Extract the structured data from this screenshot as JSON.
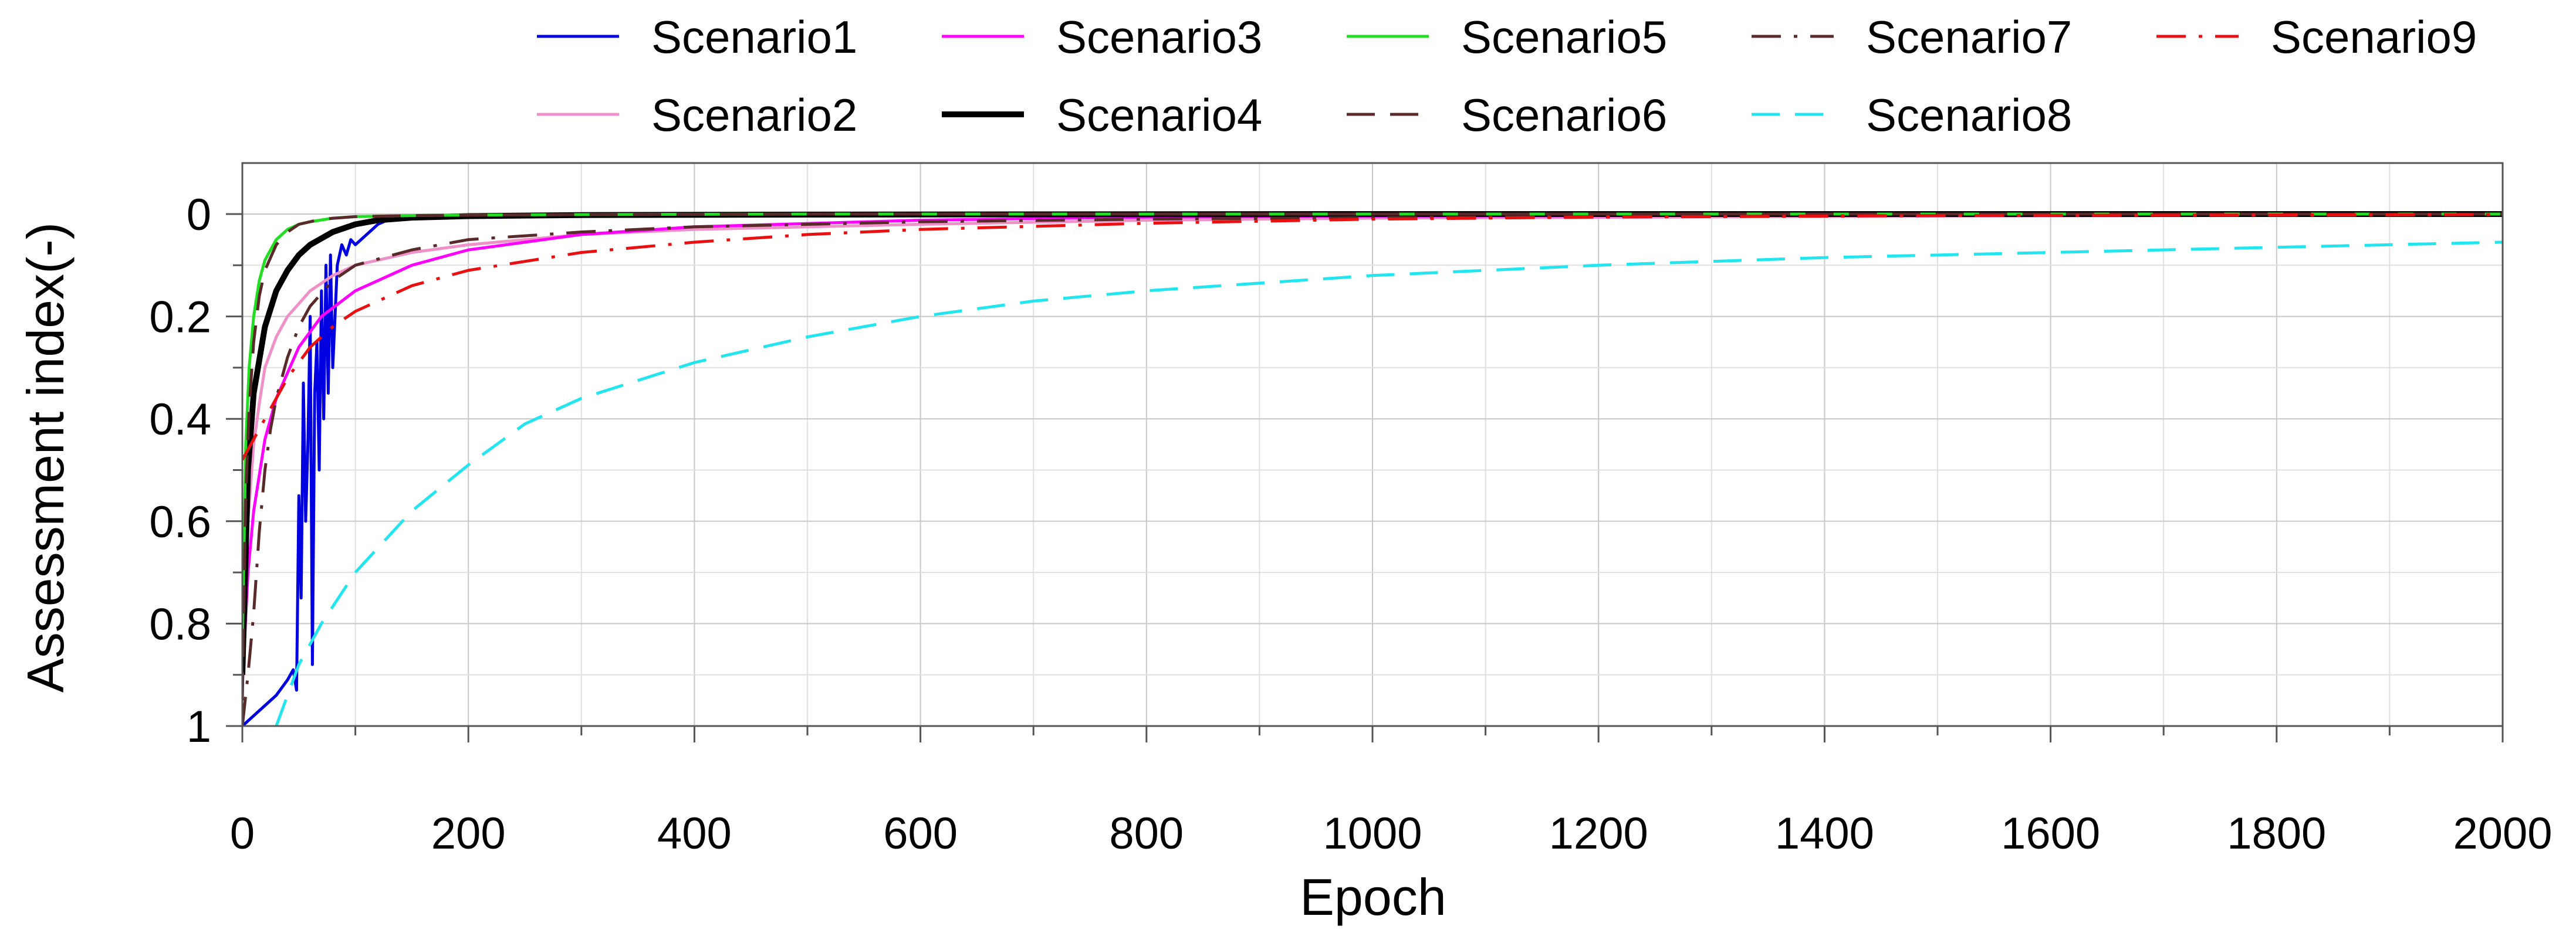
{
  "chart_data": {
    "type": "line",
    "title": "",
    "xlabel": "Epoch",
    "ylabel": "Assessment index(-)",
    "xlim": [
      0,
      2000
    ],
    "ylim": [
      0,
      1
    ],
    "y_inverted": true,
    "grid": true,
    "legend_position": "top, outside plot",
    "x_ticks": [
      0,
      200,
      400,
      600,
      800,
      1000,
      1200,
      1400,
      1600,
      1800,
      2000
    ],
    "x_tick_labels": [
      "0",
      "200",
      "400",
      "600",
      "800",
      "1000",
      "1200",
      "1400",
      "1600",
      "1800",
      "2000"
    ],
    "y_ticks": [
      0,
      0.2,
      0.4,
      0.6,
      0.8,
      1
    ],
    "y_tick_labels": [
      "0",
      "0.2",
      "0.4",
      "0.6",
      "0.8",
      "1"
    ],
    "series": [
      {
        "name": "Scenario1",
        "color": "#0000e0",
        "dash": "solid",
        "x": [
          0,
          10,
          20,
          30,
          40,
          45,
          48,
          50,
          52,
          54,
          56,
          58,
          60,
          62,
          64,
          66,
          68,
          70,
          72,
          74,
          76,
          78,
          80,
          84,
          88,
          92,
          96,
          100,
          110,
          120,
          130,
          150,
          200,
          300,
          500,
          1000,
          2000
        ],
        "y": [
          1.0,
          0.98,
          0.96,
          0.94,
          0.91,
          0.89,
          0.93,
          0.55,
          0.75,
          0.33,
          0.6,
          0.45,
          0.2,
          0.88,
          0.35,
          0.25,
          0.5,
          0.15,
          0.4,
          0.1,
          0.35,
          0.08,
          0.3,
          0.1,
          0.06,
          0.08,
          0.05,
          0.06,
          0.04,
          0.02,
          0.01,
          0.004,
          0.002,
          0.001,
          0.0,
          0.0,
          0.0
        ]
      },
      {
        "name": "Scenario2",
        "color": "#f090c8",
        "dash": "solid",
        "x": [
          0,
          5,
          10,
          15,
          20,
          30,
          40,
          60,
          80,
          100,
          150,
          200,
          300,
          400,
          600,
          800,
          1000,
          1500,
          2000
        ],
        "y": [
          0.85,
          0.6,
          0.45,
          0.37,
          0.3,
          0.24,
          0.2,
          0.15,
          0.12,
          0.1,
          0.075,
          0.06,
          0.04,
          0.03,
          0.02,
          0.012,
          0.008,
          0.004,
          0.002
        ]
      },
      {
        "name": "Scenario3",
        "color": "#ff00ff",
        "dash": "solid",
        "x": [
          0,
          5,
          10,
          20,
          30,
          50,
          70,
          100,
          150,
          200,
          300,
          400,
          600,
          800,
          1000,
          1500,
          2000
        ],
        "y": [
          0.92,
          0.7,
          0.58,
          0.44,
          0.36,
          0.26,
          0.2,
          0.15,
          0.1,
          0.07,
          0.04,
          0.025,
          0.012,
          0.006,
          0.004,
          0.002,
          0.001
        ]
      },
      {
        "name": "Scenario4",
        "color": "#000000",
        "dash": "solid",
        "x": [
          0,
          5,
          10,
          20,
          30,
          40,
          50,
          60,
          80,
          100,
          120,
          150,
          200,
          300,
          500,
          1000,
          2000
        ],
        "y": [
          0.9,
          0.5,
          0.35,
          0.22,
          0.15,
          0.11,
          0.08,
          0.06,
          0.035,
          0.02,
          0.012,
          0.007,
          0.004,
          0.002,
          0.001,
          0.0,
          0.0
        ]
      },
      {
        "name": "Scenario5",
        "color": "#22dd22",
        "dash": "solid",
        "x": [
          0,
          3,
          6,
          10,
          15,
          20,
          30,
          40,
          50,
          60,
          80,
          100,
          150,
          200,
          300,
          500,
          1000,
          2000
        ],
        "y": [
          0.85,
          0.45,
          0.3,
          0.2,
          0.13,
          0.09,
          0.05,
          0.03,
          0.02,
          0.015,
          0.008,
          0.005,
          0.003,
          0.002,
          0.001,
          0.0,
          0.0,
          0.0
        ]
      },
      {
        "name": "Scenario6",
        "color": "#5a2a2a",
        "dash": "dash",
        "x": [
          0,
          3,
          6,
          10,
          15,
          20,
          30,
          40,
          50,
          70,
          100,
          150,
          200,
          300,
          500,
          1000,
          2000
        ],
        "y": [
          0.95,
          0.55,
          0.38,
          0.25,
          0.16,
          0.11,
          0.06,
          0.035,
          0.02,
          0.01,
          0.005,
          0.003,
          0.002,
          0.001,
          0.0,
          0.0,
          0.0
        ]
      },
      {
        "name": "Scenario7",
        "color": "#5a2a2a",
        "dash": "dashdot",
        "x": [
          0,
          5,
          10,
          15,
          20,
          25,
          30,
          40,
          50,
          60,
          80,
          100,
          150,
          200,
          300,
          400,
          600,
          800,
          1000,
          1500,
          2000
        ],
        "y": [
          1.0,
          0.9,
          0.78,
          0.62,
          0.5,
          0.42,
          0.36,
          0.28,
          0.22,
          0.18,
          0.13,
          0.1,
          0.07,
          0.05,
          0.035,
          0.025,
          0.015,
          0.01,
          0.007,
          0.003,
          0.001
        ]
      },
      {
        "name": "Scenario8",
        "color": "#22e5f0",
        "dash": "dash",
        "x": [
          30,
          50,
          70,
          100,
          150,
          200,
          250,
          300,
          400,
          500,
          600,
          700,
          800,
          1000,
          1200,
          1400,
          1600,
          1800,
          2000
        ],
        "y": [
          1.0,
          0.88,
          0.8,
          0.7,
          0.58,
          0.49,
          0.41,
          0.36,
          0.29,
          0.24,
          0.2,
          0.17,
          0.15,
          0.12,
          0.1,
          0.085,
          0.075,
          0.065,
          0.055
        ]
      },
      {
        "name": "Scenario9",
        "color": "#e81010",
        "dash": "dashdot",
        "x": [
          0,
          10,
          20,
          30,
          40,
          50,
          60,
          80,
          100,
          150,
          200,
          300,
          400,
          500,
          600,
          800,
          1000,
          1200,
          1500,
          2000
        ],
        "y": [
          0.48,
          0.44,
          0.4,
          0.36,
          0.32,
          0.29,
          0.26,
          0.22,
          0.19,
          0.14,
          0.11,
          0.075,
          0.055,
          0.04,
          0.03,
          0.018,
          0.01,
          0.006,
          0.003,
          0.001
        ]
      }
    ]
  }
}
